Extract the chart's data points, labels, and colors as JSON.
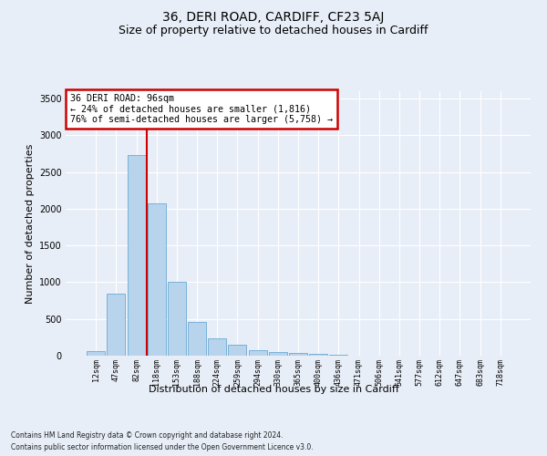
{
  "title": "36, DERI ROAD, CARDIFF, CF23 5AJ",
  "subtitle": "Size of property relative to detached houses in Cardiff",
  "xlabel": "Distribution of detached houses by size in Cardiff",
  "ylabel": "Number of detached properties",
  "categories": [
    "12sqm",
    "47sqm",
    "82sqm",
    "118sqm",
    "153sqm",
    "188sqm",
    "224sqm",
    "259sqm",
    "294sqm",
    "330sqm",
    "365sqm",
    "400sqm",
    "436sqm",
    "471sqm",
    "506sqm",
    "541sqm",
    "577sqm",
    "612sqm",
    "647sqm",
    "683sqm",
    "718sqm"
  ],
  "bar_values": [
    60,
    850,
    2730,
    2075,
    1010,
    460,
    230,
    145,
    70,
    50,
    35,
    30,
    15,
    5,
    0,
    0,
    0,
    0,
    0,
    0,
    0
  ],
  "bar_color": "#b8d4ed",
  "bar_edge_color": "#6aaad4",
  "red_line_color": "#cc0000",
  "annotation_line1": "36 DERI ROAD: 96sqm",
  "annotation_line2": "← 24% of detached houses are smaller (1,816)",
  "annotation_line3": "76% of semi-detached houses are larger (5,758) →",
  "annotation_box_facecolor": "#ffffff",
  "annotation_box_edgecolor": "#cc0000",
  "ylim": [
    0,
    3600
  ],
  "yticks": [
    0,
    500,
    1000,
    1500,
    2000,
    2500,
    3000,
    3500
  ],
  "footnote1": "Contains HM Land Registry data © Crown copyright and database right 2024.",
  "footnote2": "Contains public sector information licensed under the Open Government Licence v3.0.",
  "bg_color": "#e8eef7",
  "plot_bg_color": "#e8eef7",
  "title_fontsize": 10,
  "subtitle_fontsize": 9,
  "ylabel_fontsize": 8,
  "xlabel_fontsize": 8
}
